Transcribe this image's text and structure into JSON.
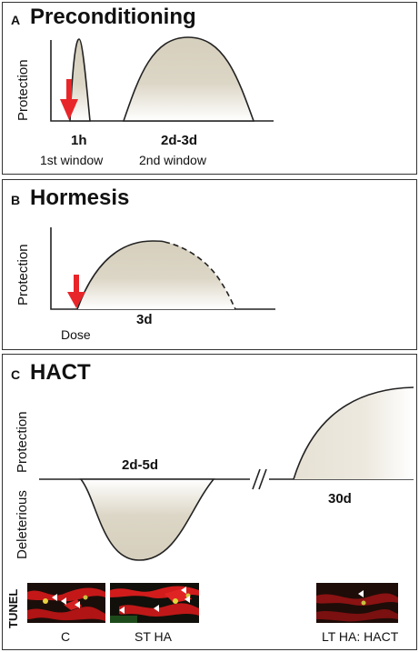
{
  "panel_a": {
    "letter": "A",
    "title": "Preconditioning",
    "ylabel": "Protection",
    "label_1h": "1h",
    "label_1st": "1st window",
    "label_2d3d": "2d-3d",
    "label_2nd": "2nd window"
  },
  "panel_b": {
    "letter": "B",
    "title": "Hormesis",
    "ylabel": "Protection",
    "label_dose": "Dose",
    "label_3d": "3d"
  },
  "panel_c": {
    "letter": "C",
    "title": "HACT",
    "ylabel_top": "Protection",
    "ylabel_bottom": "Deleterious",
    "label_2d5d": "2d-5d",
    "label_30d": "30d",
    "tunel": "TUNEL",
    "cap_c": "C",
    "cap_stha": "ST HA",
    "cap_ltha": "LT HA: HACT"
  },
  "colors": {
    "fill": "#d8d2c2",
    "arrow": "#e8262a",
    "axis": "#222222"
  }
}
